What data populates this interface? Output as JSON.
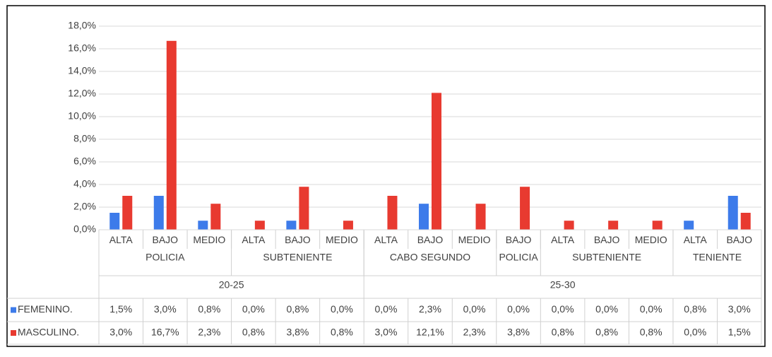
{
  "chart_data": {
    "type": "bar",
    "categories": [
      "ALTA",
      "BAJO",
      "MEDIO",
      "ALTA",
      "BAJO",
      "MEDIO",
      "ALTA",
      "BAJO",
      "MEDIO",
      "BAJO",
      "ALTA",
      "BAJO",
      "MEDIO",
      "ALTA",
      "BAJO"
    ],
    "category_groups": [
      {
        "label": "POLICIA",
        "span": 3
      },
      {
        "label": "SUBTENIENTE",
        "span": 3
      },
      {
        "label": "CABO SEGUNDO",
        "span": 3
      },
      {
        "label": "POLICIA",
        "span": 1
      },
      {
        "label": "SUBTENIENTE",
        "span": 3
      },
      {
        "label": "TENIENTE",
        "span": 2
      }
    ],
    "category_supergroups": [
      {
        "label": "20-25",
        "span": 6
      },
      {
        "label": "25-30",
        "span": 9
      }
    ],
    "series": [
      {
        "name": "FEMENINO.",
        "color": "#3d7bea",
        "values": [
          1.5,
          3.0,
          0.8,
          0.0,
          0.8,
          0.0,
          0.0,
          2.3,
          0.0,
          0.0,
          0.0,
          0.0,
          0.0,
          0.8,
          3.0
        ],
        "value_labels": [
          "1,5%",
          "3,0%",
          "0,8%",
          "0,0%",
          "0,8%",
          "0,0%",
          "0,0%",
          "2,3%",
          "0,0%",
          "0,0%",
          "0,0%",
          "0,0%",
          "0,0%",
          "0,8%",
          "3,0%"
        ]
      },
      {
        "name": "MASCULINO.",
        "color": "#e83a30",
        "values": [
          3.0,
          16.7,
          2.3,
          0.8,
          3.8,
          0.8,
          3.0,
          12.1,
          2.3,
          3.8,
          0.8,
          0.8,
          0.8,
          0.0,
          1.5
        ],
        "value_labels": [
          "3,0%",
          "16,7%",
          "2,3%",
          "0,8%",
          "3,8%",
          "0,8%",
          "3,0%",
          "12,1%",
          "2,3%",
          "3,8%",
          "0,8%",
          "0,8%",
          "0,8%",
          "0,0%",
          "1,5%"
        ]
      }
    ],
    "ylim": [
      0,
      18
    ],
    "yticks": [
      {
        "value": 0,
        "label": "0,0%"
      },
      {
        "value": 2,
        "label": "2,0%"
      },
      {
        "value": 4,
        "label": "4,0%"
      },
      {
        "value": 6,
        "label": "6,0%"
      },
      {
        "value": 8,
        "label": "8,0%"
      },
      {
        "value": 10,
        "label": "10,0%"
      },
      {
        "value": 12,
        "label": "12,0%"
      },
      {
        "value": 14,
        "label": "14,0%"
      },
      {
        "value": 16,
        "label": "16,0%"
      },
      {
        "value": 18,
        "label": "18,0%"
      }
    ],
    "grid": true
  }
}
